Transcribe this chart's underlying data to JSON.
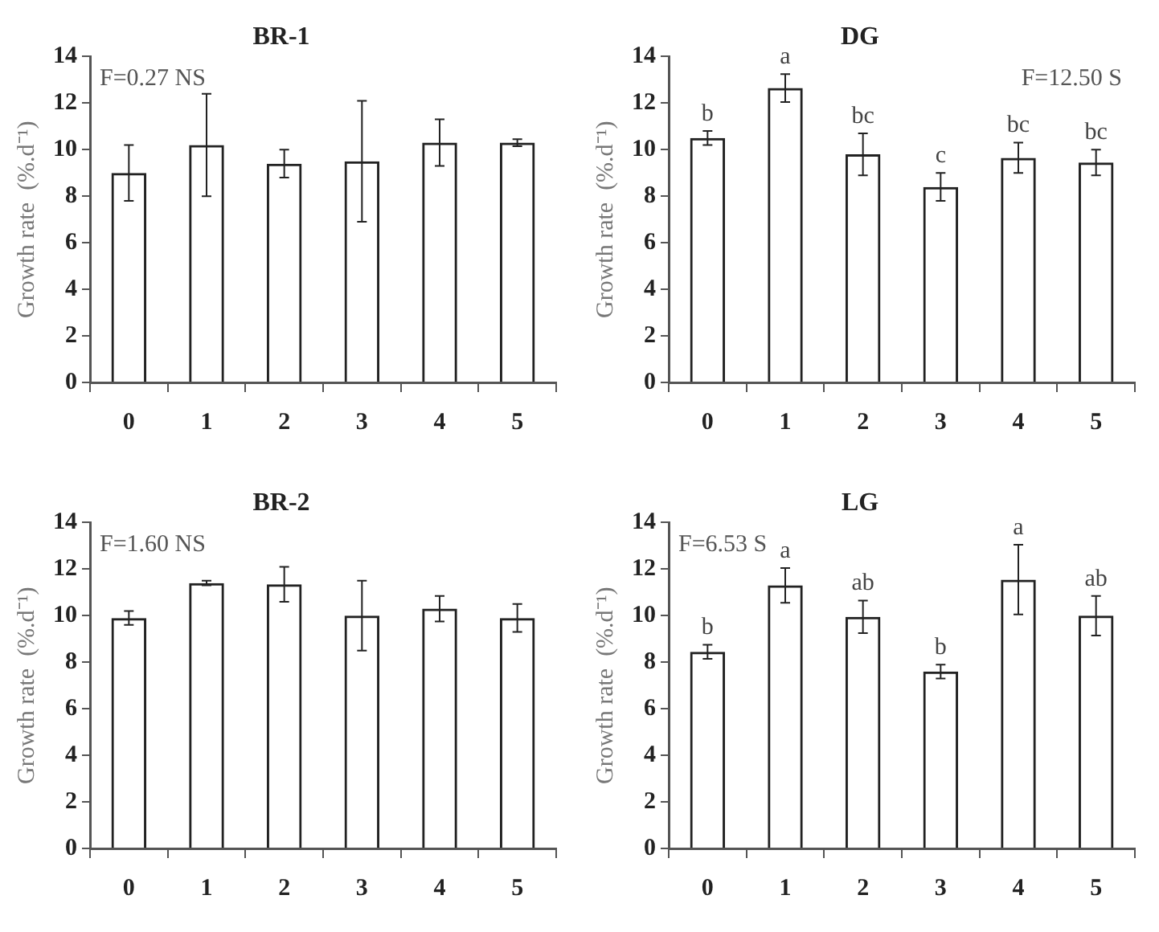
{
  "chart_data": [
    {
      "type": "bar",
      "title": "BR-1",
      "ylabel": "Growth rate  (%.d⁻¹)",
      "categories": [
        "0",
        "1",
        "2",
        "3",
        "4",
        "5"
      ],
      "values": [
        9.0,
        10.2,
        9.4,
        9.5,
        10.3,
        10.3
      ],
      "errors": [
        1.2,
        2.2,
        0.6,
        2.6,
        1.0,
        0.15
      ],
      "color": "#222222",
      "ylim": [
        0,
        14
      ],
      "yticks": [
        0,
        2,
        4,
        6,
        8,
        10,
        12,
        14
      ],
      "grid": false,
      "legend": false,
      "annotations": [
        "F=0.27 NS"
      ]
    },
    {
      "type": "bar",
      "title": "DG",
      "ylabel": "Growth rate  (%.d⁻¹)",
      "categories": [
        "0",
        "1",
        "2",
        "3",
        "4",
        "5"
      ],
      "values": [
        10.5,
        12.65,
        9.8,
        8.4,
        9.65,
        9.45
      ],
      "errors": [
        0.3,
        0.6,
        0.9,
        0.6,
        0.65,
        0.55
      ],
      "color": "#222222",
      "ylim": [
        0,
        14
      ],
      "yticks": [
        0,
        2,
        4,
        6,
        8,
        10,
        12,
        14
      ],
      "grid": false,
      "legend": false,
      "annotations": [
        "F=12.50 S",
        {
          "text": "b",
          "x": "0",
          "y": 10.8
        },
        {
          "text": "a",
          "x": "1",
          "y": 13.25
        },
        {
          "text": "bc",
          "x": "2",
          "y": 10.7
        },
        {
          "text": "c",
          "x": "3",
          "y": 9.0
        },
        {
          "text": "bc",
          "x": "4",
          "y": 10.3
        },
        {
          "text": "bc",
          "x": "5",
          "y": 10.0
        }
      ]
    },
    {
      "type": "bar",
      "title": "BR-2",
      "ylabel": "Growth rate  (%.d⁻¹)",
      "categories": [
        "0",
        "1",
        "2",
        "3",
        "4",
        "5"
      ],
      "values": [
        9.9,
        11.4,
        11.35,
        10.0,
        10.3,
        9.9
      ],
      "errors": [
        0.3,
        0.1,
        0.75,
        1.5,
        0.55,
        0.6
      ],
      "color": "#222222",
      "ylim": [
        0,
        14
      ],
      "yticks": [
        0,
        2,
        4,
        6,
        8,
        10,
        12,
        14
      ],
      "grid": false,
      "legend": false,
      "annotations": [
        "F=1.60 NS"
      ]
    },
    {
      "type": "bar",
      "title": "LG",
      "ylabel": "Growth rate  (%.d⁻¹)",
      "categories": [
        "0",
        "1",
        "2",
        "3",
        "4",
        "5"
      ],
      "values": [
        8.45,
        11.3,
        9.95,
        7.6,
        11.55,
        10.0
      ],
      "errors": [
        0.3,
        0.75,
        0.7,
        0.3,
        1.5,
        0.85
      ],
      "color": "#222222",
      "ylim": [
        0,
        14
      ],
      "yticks": [
        0,
        2,
        4,
        6,
        8,
        10,
        12,
        14
      ],
      "grid": false,
      "legend": false,
      "annotations": [
        "F=6.53 S",
        {
          "text": "b",
          "x": "0",
          "y": 8.75
        },
        {
          "text": "a",
          "x": "1",
          "y": 12.05
        },
        {
          "text": "ab",
          "x": "2",
          "y": 10.65
        },
        {
          "text": "b",
          "x": "3",
          "y": 7.9
        },
        {
          "text": "a",
          "x": "4",
          "y": 13.05
        },
        {
          "text": "ab",
          "x": "5",
          "y": 10.85
        }
      ]
    }
  ]
}
